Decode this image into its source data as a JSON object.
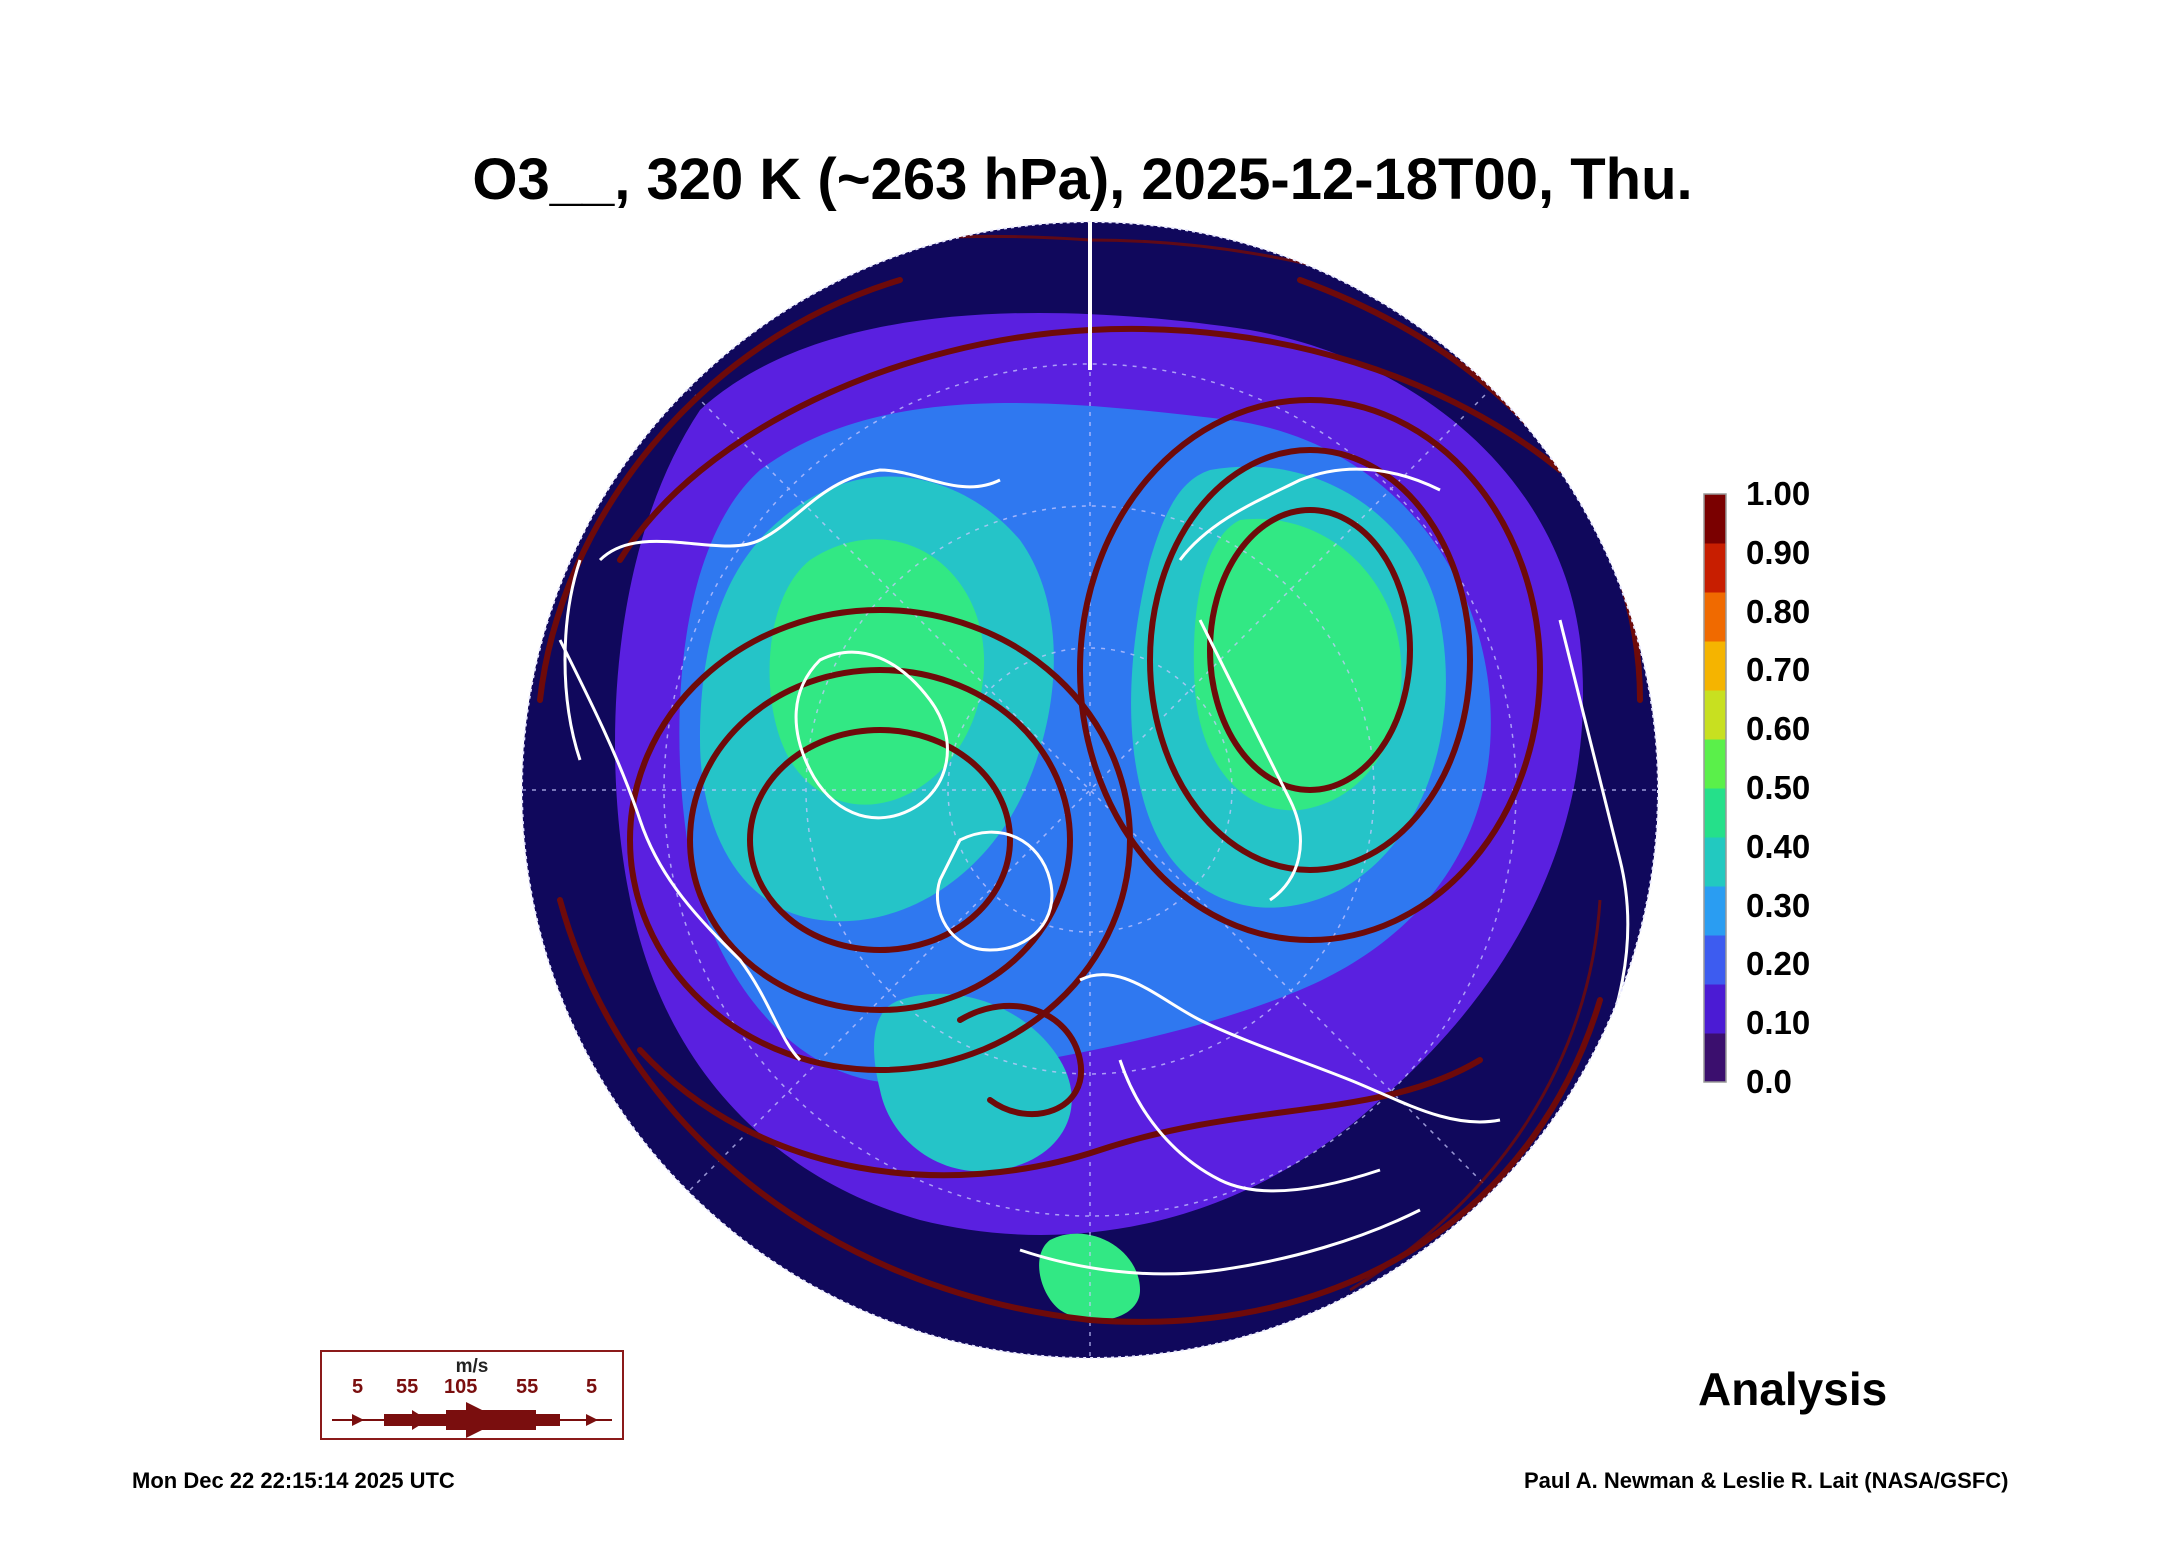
{
  "title": "O3__, 320 K (~263 hPa), 2025-12-18T00, Thu.",
  "colorbar": {
    "labels": [
      "1.00",
      "0.90",
      "0.80",
      "0.70",
      "0.60",
      "0.50",
      "0.40",
      "0.30",
      "0.20",
      "0.10",
      "0.0"
    ],
    "colors": [
      "#3b0f6e",
      "#4b1bd4",
      "#3d5cf0",
      "#2a9df2",
      "#22c9c0",
      "#25e08a",
      "#5af04a",
      "#c8e020",
      "#f5b400",
      "#f06a00",
      "#c81e00",
      "#7a0000"
    ]
  },
  "vector_legend": {
    "unit": "m/s",
    "values": [
      "5",
      "55",
      "105",
      "55",
      "5"
    ]
  },
  "analysis_label": "Analysis",
  "timestamp": "Mon Dec 22 22:15:14 2025 UTC",
  "credit": "Paul A. Newman & Leslie R. Lait (NASA/GSFC)",
  "map_colors": {
    "background": "#10085c",
    "low": "#5a20e0",
    "mid": "#2f78f0",
    "high": "#25c4c8",
    "peak": "#32e884",
    "streamline": "#6e0a0a",
    "coast": "#ffffff"
  }
}
